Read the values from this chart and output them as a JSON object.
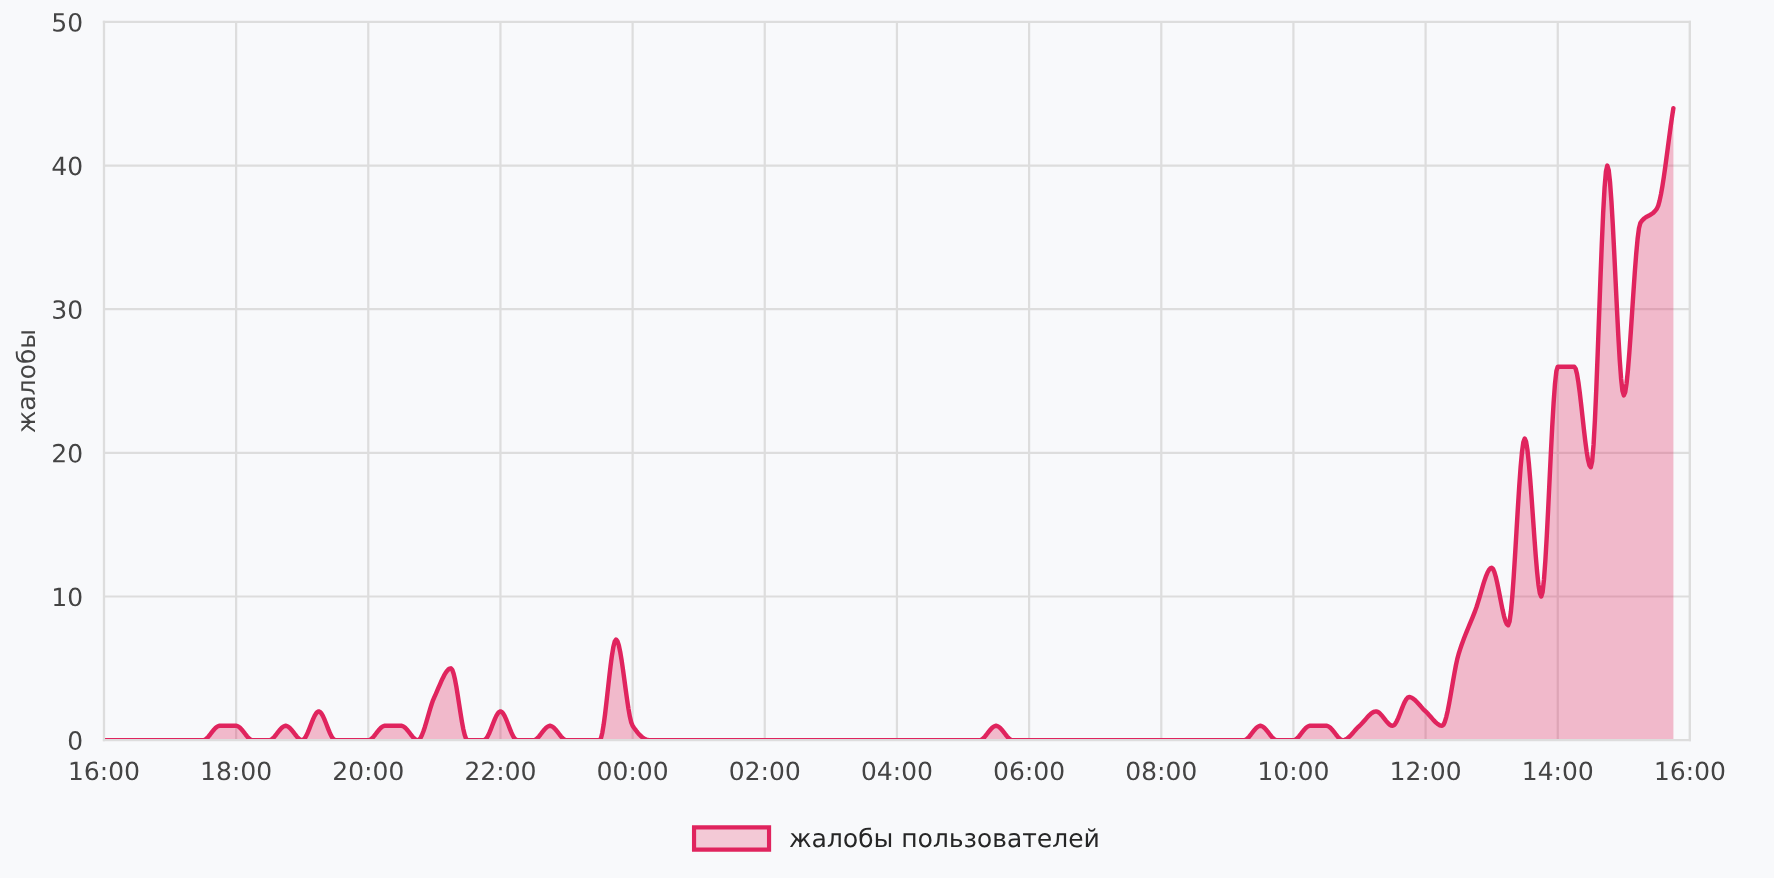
{
  "chart_data": {
    "type": "area",
    "ylabel": "жалобы",
    "x": [
      "2000-01-01T16:00",
      "2000-01-01T17:30",
      "2000-01-01T17:45",
      "2000-01-01T18:00",
      "2000-01-01T18:15",
      "2000-01-01T18:30",
      "2000-01-01T18:45",
      "2000-01-01T19:00",
      "2000-01-01T19:15",
      "2000-01-01T19:30",
      "2000-01-01T20:00",
      "2000-01-01T20:15",
      "2000-01-01T20:30",
      "2000-01-01T20:45",
      "2000-01-01T21:00",
      "2000-01-01T21:15",
      "2000-01-01T21:30",
      "2000-01-01T21:45",
      "2000-01-01T22:00",
      "2000-01-01T22:15",
      "2000-01-01T22:30",
      "2000-01-01T22:45",
      "2000-01-01T23:00",
      "2000-01-01T23:30",
      "2000-01-01T23:45",
      "2000-01-02T00:00",
      "2000-01-02T00:15",
      "2000-01-02T05:15",
      "2000-01-02T05:30",
      "2000-01-02T05:45",
      "2000-01-02T09:15",
      "2000-01-02T09:30",
      "2000-01-02T09:45",
      "2000-01-02T10:00",
      "2000-01-02T10:15",
      "2000-01-02T10:30",
      "2000-01-02T10:45",
      "2000-01-02T11:00",
      "2000-01-02T11:15",
      "2000-01-02T11:30",
      "2000-01-02T11:45",
      "2000-01-02T12:00",
      "2000-01-02T12:15",
      "2000-01-02T12:30",
      "2000-01-02T12:45",
      "2000-01-02T13:00",
      "2000-01-02T13:15",
      "2000-01-02T13:30",
      "2000-01-02T13:45",
      "2000-01-02T14:00",
      "2000-01-02T14:15",
      "2000-01-02T14:30",
      "2000-01-02T14:45",
      "2000-01-02T15:00",
      "2000-01-02T15:15",
      "2000-01-02T15:30",
      "2000-01-02T15:45"
    ],
    "series": [
      {
        "name": "жалобы пользователей",
        "color": "#e0245e",
        "values": [
          0,
          0,
          1,
          1,
          0,
          0,
          1,
          0,
          2,
          0,
          0,
          1,
          1,
          0,
          3,
          5,
          0,
          0,
          2,
          0,
          0,
          1,
          0,
          0,
          7,
          1,
          0,
          0,
          1,
          0,
          0,
          1,
          0,
          0,
          1,
          1,
          0,
          1,
          2,
          1,
          3,
          2,
          1,
          6,
          9,
          12,
          8,
          21,
          10,
          26,
          26,
          19,
          40,
          24,
          36,
          37,
          44
        ]
      }
    ],
    "xlim": [
      "2000-01-01T16:00",
      "2000-01-02T16:00"
    ],
    "xticks": [
      {
        "value": "2000-01-01T16:00",
        "label": "16:00"
      },
      {
        "value": "2000-01-01T18:00",
        "label": "18:00"
      },
      {
        "value": "2000-01-01T20:00",
        "label": "20:00"
      },
      {
        "value": "2000-01-01T22:00",
        "label": "22:00"
      },
      {
        "value": "2000-01-02T00:00",
        "label": "00:00"
      },
      {
        "value": "2000-01-02T02:00",
        "label": "02:00"
      },
      {
        "value": "2000-01-02T04:00",
        "label": "04:00"
      },
      {
        "value": "2000-01-02T06:00",
        "label": "06:00"
      },
      {
        "value": "2000-01-02T08:00",
        "label": "08:00"
      },
      {
        "value": "2000-01-02T10:00",
        "label": "10:00"
      },
      {
        "value": "2000-01-02T12:00",
        "label": "12:00"
      },
      {
        "value": "2000-01-02T14:00",
        "label": "14:00"
      },
      {
        "value": "2000-01-02T16:00",
        "label": "16:00"
      }
    ],
    "ylim": [
      0,
      50
    ],
    "yticks": [
      0,
      10,
      20,
      30,
      40,
      50
    ],
    "grid": true,
    "legend": "bottom",
    "line_style": "solid",
    "marker": "none"
  }
}
